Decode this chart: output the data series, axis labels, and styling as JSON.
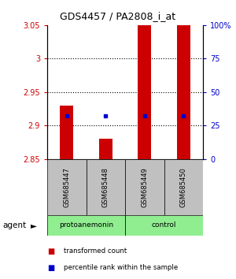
{
  "title": "GDS4457 / PA2808_i_at",
  "samples": [
    "GSM685447",
    "GSM685448",
    "GSM685449",
    "GSM685450"
  ],
  "bar_base": 2.85,
  "bar_tops": [
    2.93,
    2.88,
    3.05,
    3.12
  ],
  "ylim_left": [
    2.85,
    3.05
  ],
  "ylim_right": [
    0,
    100
  ],
  "yticks_left": [
    2.85,
    2.9,
    2.95,
    3.0,
    3.05
  ],
  "ytick_labels_left": [
    "2.85",
    "2.9",
    "2.95",
    "3",
    "3.05"
  ],
  "yticks_right": [
    0,
    25,
    50,
    75,
    100
  ],
  "ytick_labels_right": [
    "0",
    "25",
    "50",
    "75",
    "100%"
  ],
  "hlines": [
    2.9,
    2.95,
    3.0
  ],
  "percentile_pcts": [
    32,
    32.5,
    32.5,
    32.5
  ],
  "bar_color": "#CC0000",
  "percentile_color": "#0000CC",
  "bar_width": 0.35,
  "left_tick_color": "#CC0000",
  "right_tick_color": "#0000CC",
  "sample_bg_color": "#C0C0C0",
  "group_bg_color": "#90EE90",
  "group1_label": "protoanemonin",
  "group2_label": "control",
  "agent_label": "agent",
  "legend_items": [
    {
      "color": "#CC0000",
      "label": "transformed count"
    },
    {
      "color": "#0000CC",
      "label": "percentile rank within the sample"
    }
  ]
}
